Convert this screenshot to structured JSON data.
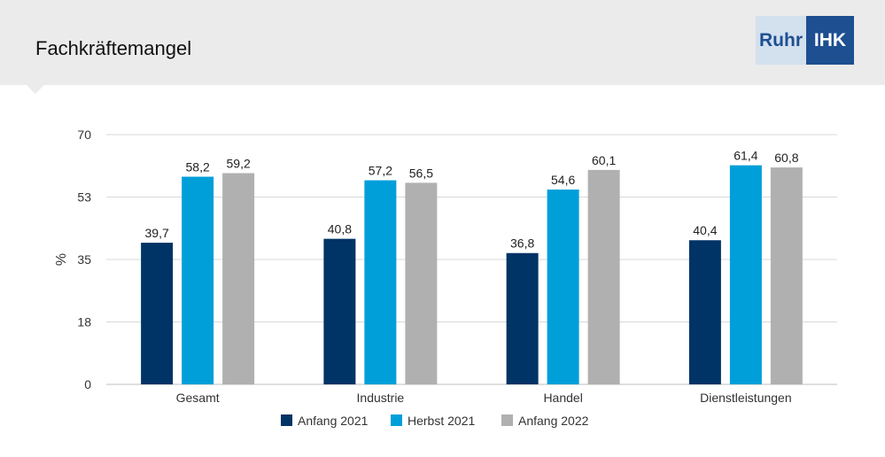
{
  "header": {
    "title": "Fachkräftemangel",
    "logo": {
      "part1": "Ruhr",
      "part2": "IHK"
    }
  },
  "chart_data": {
    "type": "bar",
    "title": "",
    "xlabel": "",
    "ylabel": "%",
    "ylim": [
      0,
      70
    ],
    "yticks": [
      "0",
      "18",
      "35",
      "53",
      "70"
    ],
    "categories": [
      "Gesamt",
      "Industrie",
      "Handel",
      "Dienstleistungen"
    ],
    "series": [
      {
        "name": "Anfang 2021",
        "color": "#003366",
        "values": [
          39.7,
          40.8,
          36.8,
          40.4
        ],
        "labels": [
          "39,7",
          "40,8",
          "36,8",
          "40,4"
        ]
      },
      {
        "name": "Herbst 2021",
        "color": "#009fda",
        "values": [
          58.2,
          57.2,
          54.6,
          61.4
        ],
        "labels": [
          "58,2",
          "57,2",
          "54,6",
          "61,4"
        ]
      },
      {
        "name": "Anfang 2022",
        "color": "#b0b0b0",
        "values": [
          59.2,
          56.5,
          60.1,
          60.8
        ],
        "labels": [
          "59,2",
          "56,5",
          "60,1",
          "60,8"
        ]
      }
    ],
    "grid": true,
    "legend": "bottom"
  }
}
